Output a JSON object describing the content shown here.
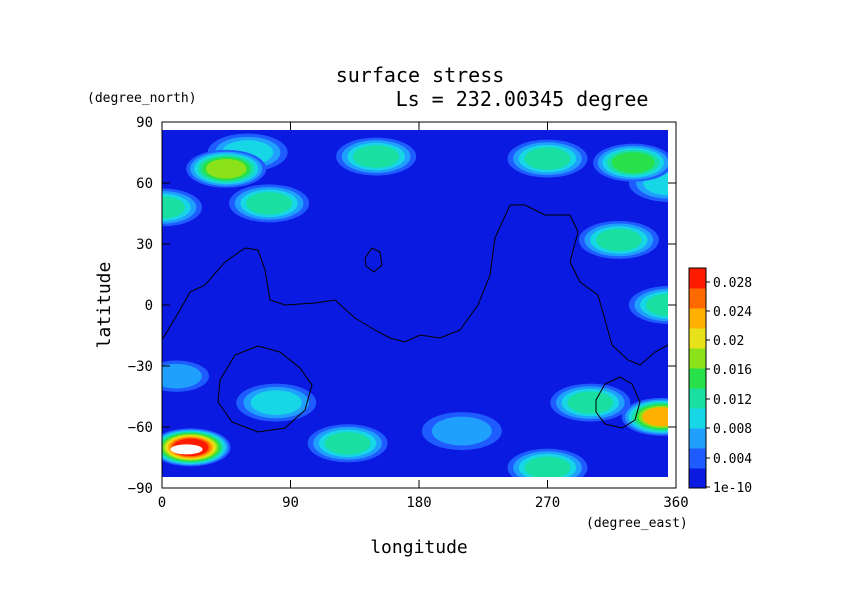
{
  "chart_data": {
    "type": "heatmap",
    "title": "surface stress",
    "subtitle": "Ls = 232.00345 degree",
    "xlabel": "longitude",
    "ylabel": "latitude",
    "x_units": "(degree_east)",
    "y_units": "(degree_north)",
    "xlim": [
      0,
      360
    ],
    "ylim": [
      -90,
      90
    ],
    "x_ticks": [
      "0",
      "90",
      "180",
      "270",
      "360"
    ],
    "y_ticks": [
      "90",
      "60",
      "30",
      "0",
      "−30",
      "−60",
      "−90"
    ],
    "colorbar": {
      "labels": [
        "0.028",
        "0.024",
        "0.02",
        "0.016",
        "0.012",
        "0.008",
        "0.004",
        "1e-10"
      ],
      "min": 0,
      "max": 0.03
    },
    "grid": false,
    "regions": [
      {
        "lon": 45,
        "lat": 67,
        "value": 0.018
      },
      {
        "lon": 150,
        "lat": 73,
        "value": 0.012
      },
      {
        "lon": 60,
        "lat": 75,
        "value": 0.01
      },
      {
        "lon": 330,
        "lat": 70,
        "value": 0.016
      },
      {
        "lon": 355,
        "lat": 60,
        "value": 0.01
      },
      {
        "lon": 270,
        "lat": 72,
        "value": 0.012
      },
      {
        "lon": 0,
        "lat": 48,
        "value": 0.012
      },
      {
        "lon": 75,
        "lat": 50,
        "value": 0.012
      },
      {
        "lon": 320,
        "lat": 32,
        "value": 0.012
      },
      {
        "lon": 355,
        "lat": 0,
        "value": 0.012
      },
      {
        "lon": 10,
        "lat": -35,
        "value": 0.008
      },
      {
        "lon": 80,
        "lat": -48,
        "value": 0.01
      },
      {
        "lon": 130,
        "lat": -68,
        "value": 0.012
      },
      {
        "lon": 270,
        "lat": -80,
        "value": 0.012
      },
      {
        "lon": 20,
        "lat": -70,
        "value": 0.03
      },
      {
        "lon": 350,
        "lat": -55,
        "value": 0.022
      },
      {
        "lon": 300,
        "lat": -48,
        "value": 0.012
      },
      {
        "lon": 210,
        "lat": -62,
        "value": 0.006
      }
    ]
  }
}
